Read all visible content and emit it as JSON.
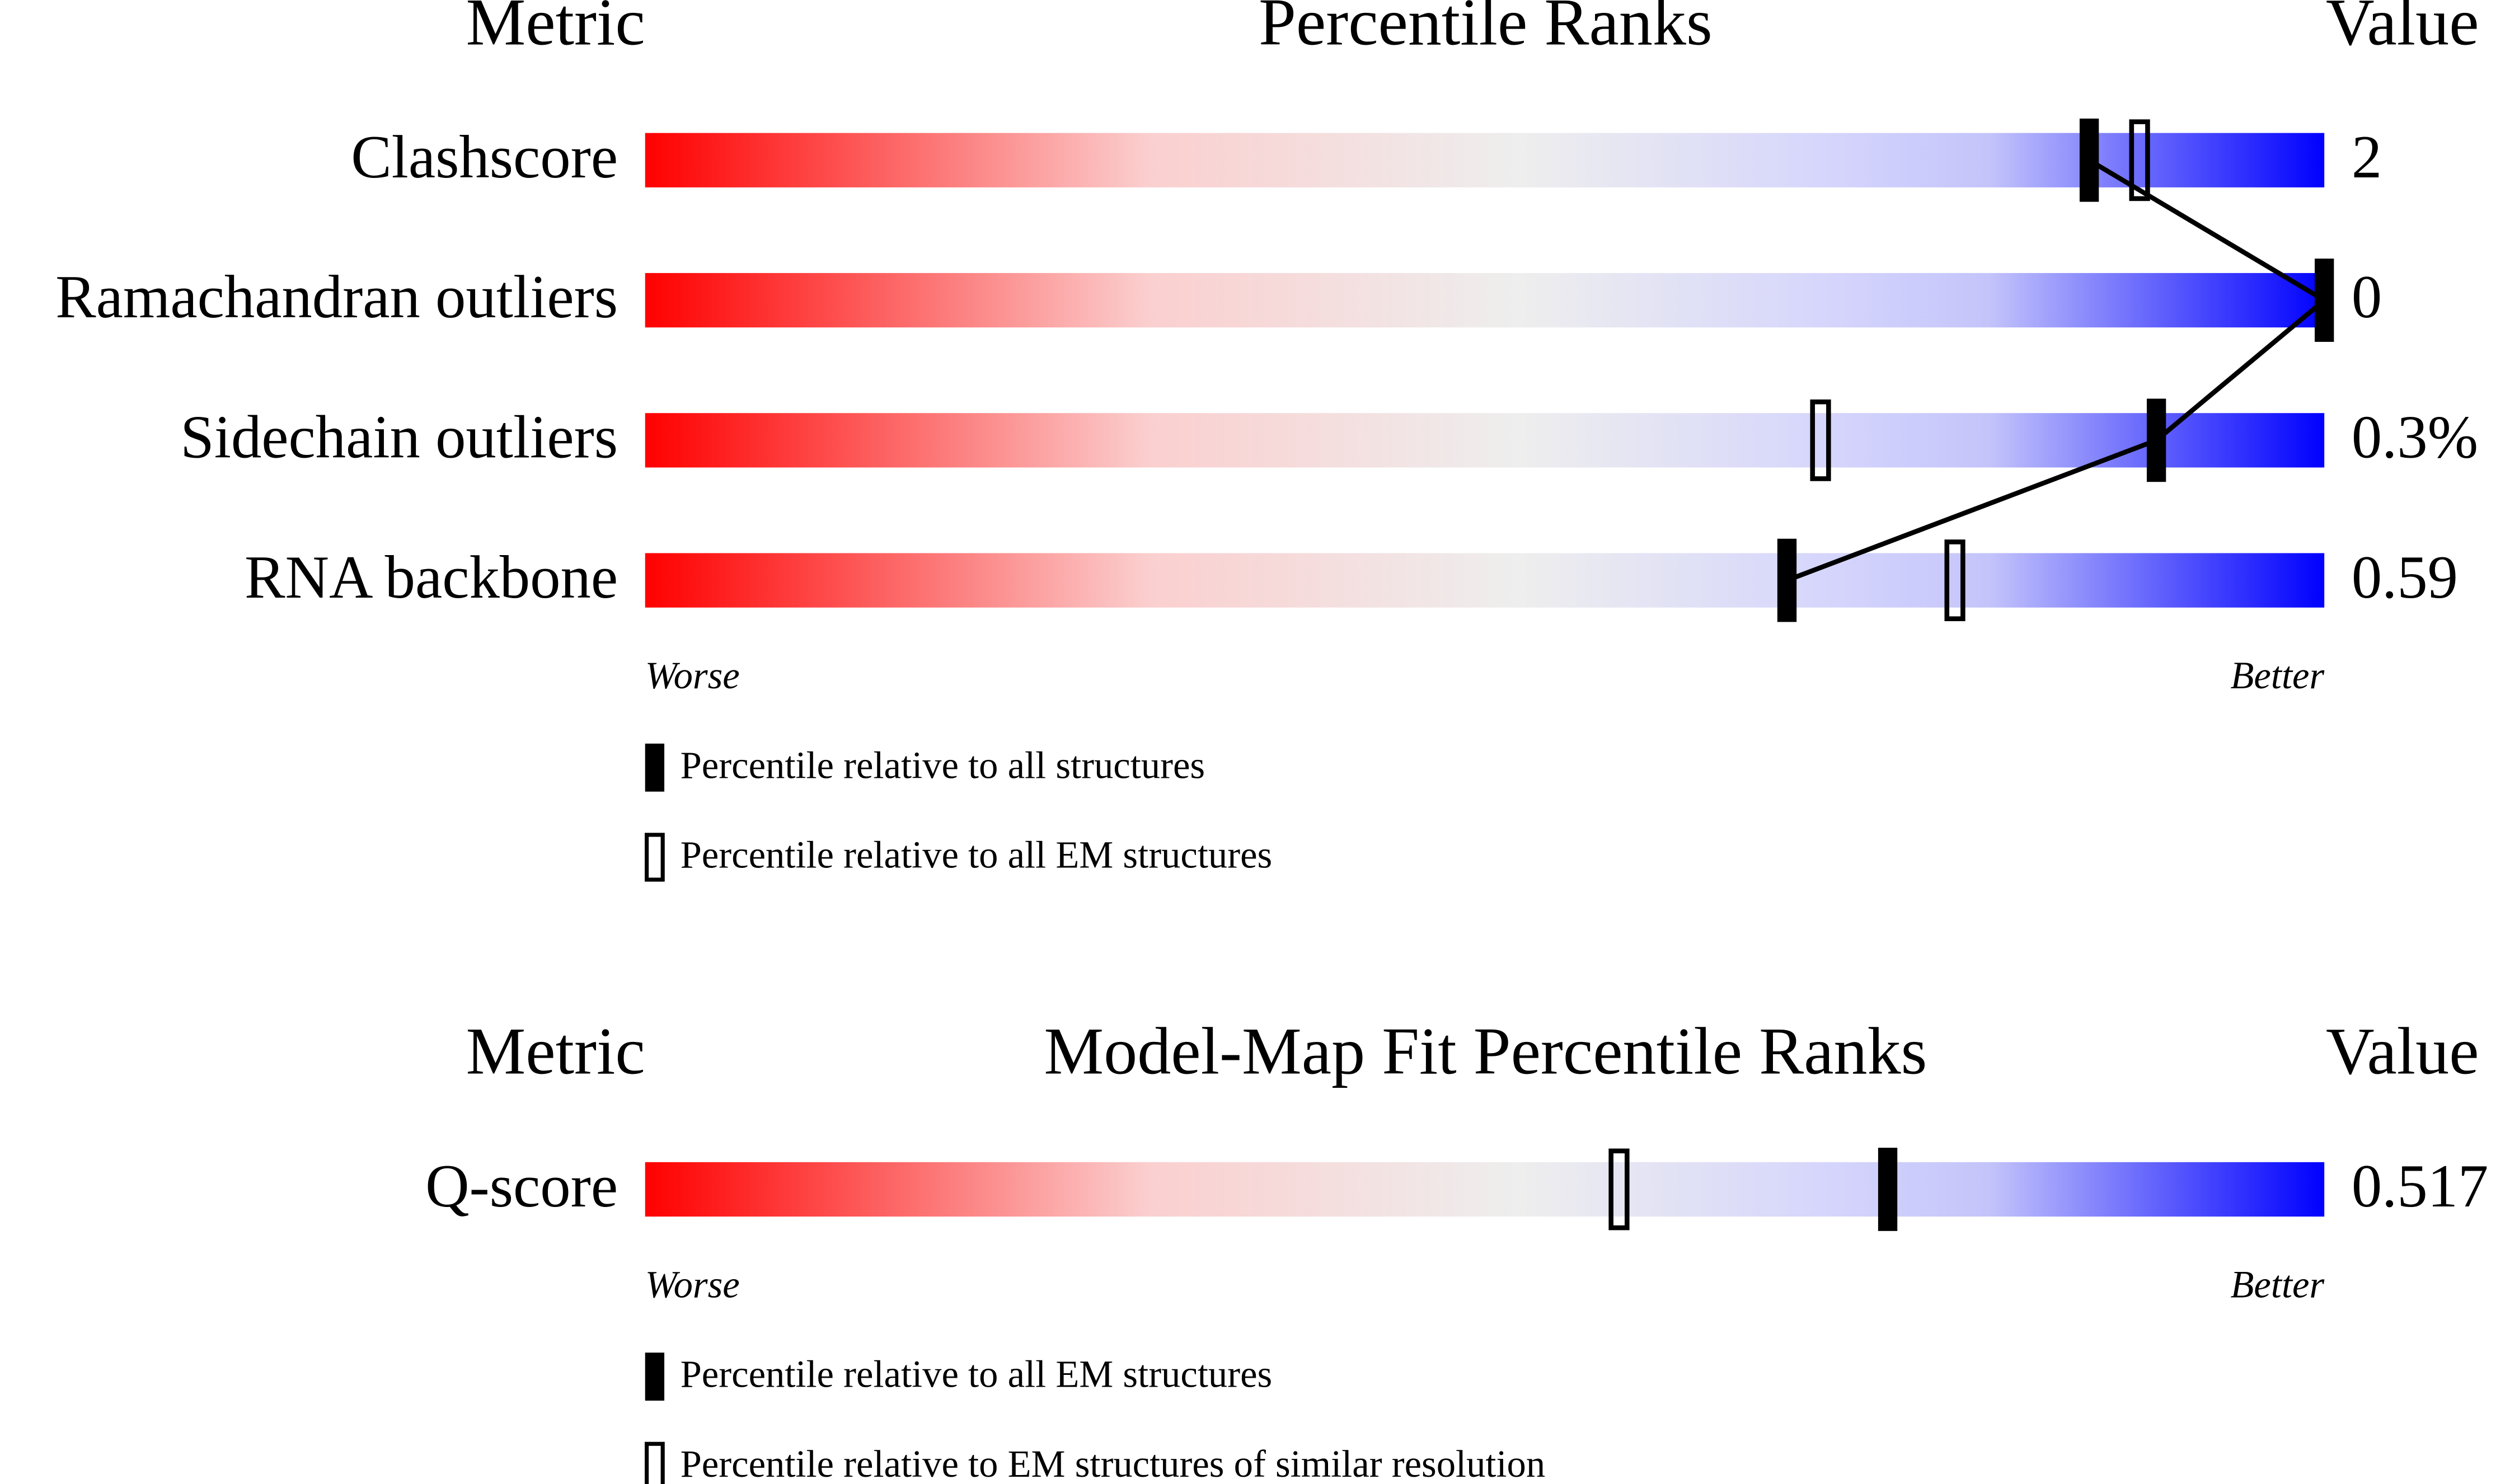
{
  "chart_data": [
    {
      "type": "slider",
      "metric_header": "Metric",
      "title": "Percentile Ranks",
      "value_header": "Value",
      "categories": [
        "Clashscore",
        "Ramachandran outliers",
        "Sidechain outliers",
        "RNA backbone"
      ],
      "value_column": [
        "2",
        "0",
        "0.3%",
        "0.59"
      ],
      "xlim": [
        0,
        100
      ],
      "worse_label": "Worse",
      "better_label": "Better",
      "series": [
        {
          "name": "Percentile relative to all structures",
          "style": "filled",
          "color": "#000000",
          "connect": true,
          "values": [
            86,
            100,
            90,
            68
          ]
        },
        {
          "name": "Percentile relative to all EM structures",
          "style": "open",
          "color": "#000000",
          "connect": false,
          "values": [
            89,
            null,
            70,
            78
          ]
        }
      ]
    },
    {
      "type": "slider",
      "metric_header": "Metric",
      "title": "Model-Map Fit Percentile Ranks",
      "value_header": "Value",
      "categories": [
        "Q-score"
      ],
      "value_column": [
        "0.517"
      ],
      "xlim": [
        0,
        100
      ],
      "worse_label": "Worse",
      "better_label": "Better",
      "series": [
        {
          "name": "Percentile relative to all EM structures",
          "style": "filled",
          "color": "#000000",
          "connect": false,
          "values": [
            74
          ]
        },
        {
          "name": "Percentile relative to EM structures of similar resolution",
          "style": "open",
          "color": "#000000",
          "connect": false,
          "values": [
            58
          ]
        }
      ]
    }
  ]
}
